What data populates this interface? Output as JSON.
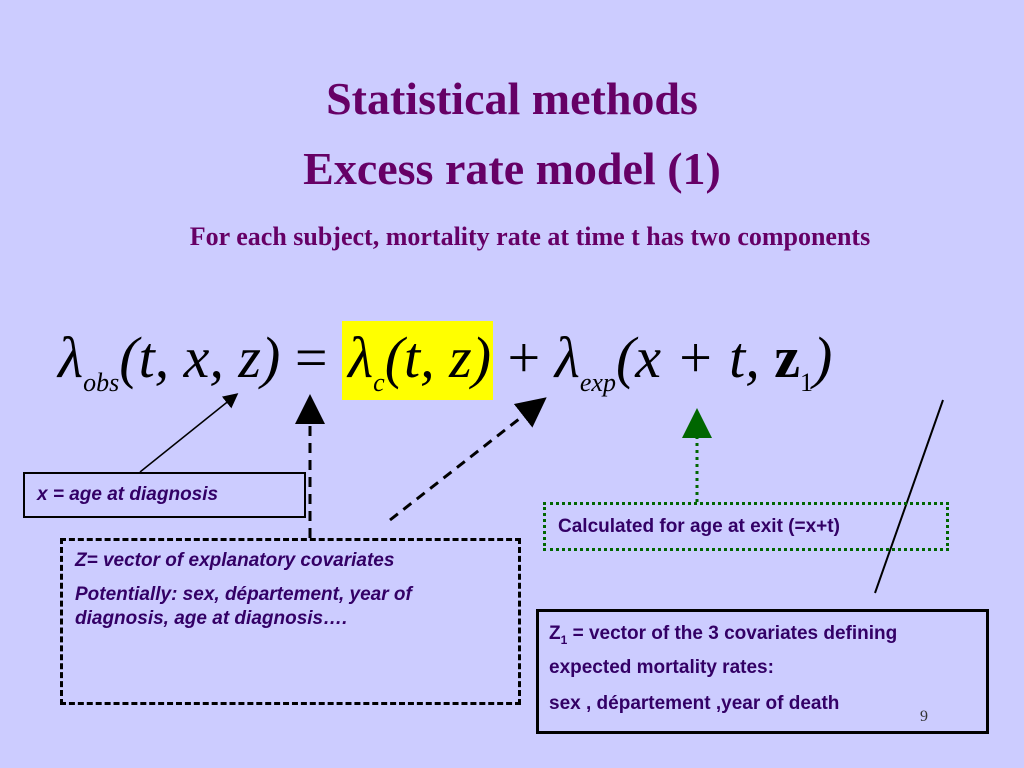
{
  "title": {
    "line1": "Statistical methods",
    "line2": "Excess rate model (1)"
  },
  "subtitle": "For each subject, mortality rate at time t has two components",
  "formula": {
    "lhs_symbol": "λ",
    "lhs_sub": "obs",
    "lhs_args": "(t, x, z)",
    "equals": "=",
    "term1_symbol": "λ",
    "term1_sub": "c",
    "term1_args": "(t, z)",
    "plus": "+",
    "term2_symbol": "λ",
    "term2_sub": "exp",
    "term2_args": "(x + t, ",
    "term2_z": "z",
    "term2_z_sub": "1",
    "term2_close": ")"
  },
  "boxes": {
    "x_box": "x = age at diagnosis",
    "z_box": {
      "line1": "Z= vector of explanatory covariates",
      "line2": "Potentially: sex, département, year of diagnosis, age at diagnosis…."
    },
    "exit_box": "Calculated for age at exit (=x+t)",
    "z1_box": {
      "z": "Z",
      "sub": "1",
      "line1": " = vector of  the 3 covariates defining expected mortality rates:",
      "line2": "sex , département ,year of death"
    }
  },
  "page_number": "9"
}
